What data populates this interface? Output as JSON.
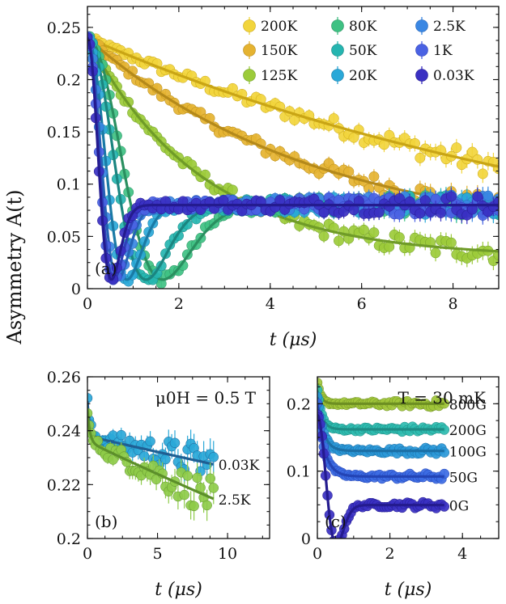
{
  "figure": {
    "y_axis_label": "Asymmetry A(t)"
  },
  "chart_data": [
    {
      "id": "a",
      "type": "scatter",
      "panel_tag": "(a)",
      "xlabel": "t (μs)",
      "xlim": [
        0,
        9
      ],
      "ylim": [
        0,
        0.27
      ],
      "x_ticks": [
        0,
        2,
        4,
        6,
        8
      ],
      "y_ticks": [
        0,
        0.05,
        0.1,
        0.15,
        0.2,
        0.25
      ],
      "x_tick_labels": [
        "0",
        "2",
        "4",
        "6",
        "8"
      ],
      "y_tick_labels": [
        "0",
        "0.05",
        "0.1",
        "0.15",
        "0.2",
        "0.25"
      ],
      "legend_position": "top-right",
      "series": [
        {
          "name": "200K",
          "color": "#f2d53c",
          "fit_color": "#c9a515",
          "model": "exp",
          "a0": 0.24,
          "base": 0.0,
          "rate": 0.08,
          "t_end": 9
        },
        {
          "name": "150K",
          "color": "#e5b331",
          "fit_color": "#b4891a",
          "model": "exp",
          "a0": 0.24,
          "base": 0.045,
          "rate": 0.2,
          "t_end": 9
        },
        {
          "name": "125K",
          "color": "#9ccb3a",
          "fit_color": "#6f9b28",
          "model": "exp",
          "a0": 0.24,
          "base": 0.03,
          "rate": 0.4,
          "t_end": 9
        },
        {
          "name": "80K",
          "color": "#3fc183",
          "fit_color": "#2a8f60",
          "model": "kt",
          "a0": 0.24,
          "base": 0.0,
          "delta": 1.05,
          "t_end": 9
        },
        {
          "name": "50K",
          "color": "#25b5b0",
          "fit_color": "#1b8580",
          "model": "kt",
          "a0": 0.24,
          "base": 0.0,
          "delta": 1.35,
          "t_end": 9
        },
        {
          "name": "20K",
          "color": "#2aa8d8",
          "fit_color": "#1a7aa5",
          "model": "kt",
          "a0": 0.24,
          "base": 0.0,
          "delta": 2.0,
          "t_end": 9
        },
        {
          "name": "2.5K",
          "color": "#3a87e3",
          "fit_color": "#2563b5",
          "model": "kt",
          "a0": 0.24,
          "base": 0.0,
          "delta": 2.6,
          "t_end": 9
        },
        {
          "name": "1K",
          "color": "#4a62e3",
          "fit_color": "#2f40b8",
          "model": "kt",
          "a0": 0.24,
          "base": 0.0,
          "delta": 3.0,
          "t_end": 9
        },
        {
          "name": "0.03K",
          "color": "#3a30c2",
          "fit_color": "#241b8f",
          "model": "kt",
          "a0": 0.24,
          "base": 0.0,
          "delta": 3.3,
          "t_end": 9
        }
      ]
    },
    {
      "id": "b",
      "type": "scatter",
      "panel_tag": "(b)",
      "annotation": "μ0H = 0.5 T",
      "xlabel": "t (μs)",
      "xlim": [
        0,
        13
      ],
      "ylim": [
        0.2,
        0.26
      ],
      "x_ticks": [
        0,
        5,
        10
      ],
      "y_ticks": [
        0.2,
        0.22,
        0.24,
        0.26
      ],
      "x_tick_labels": [
        "0",
        "5",
        "10"
      ],
      "y_tick_labels": [
        "0.2",
        "0.22",
        "0.24",
        "0.26"
      ],
      "series": [
        {
          "name": "0.03K",
          "color": "#2aa8d8",
          "fit_color": "#1f5f93",
          "label_color": "#1f5f93",
          "model": "fast",
          "a_fast": 0.013,
          "r_fast": 6,
          "a_slow": 0.238,
          "r_slow": 0.005,
          "t_end": 9
        },
        {
          "name": "2.5K",
          "color": "#8ecb49",
          "fit_color": "#5c8f2a",
          "label_color": "#6aa033",
          "model": "fast",
          "a_fast": 0.012,
          "r_fast": 6,
          "a_slow": 0.236,
          "r_slow": 0.0105,
          "t_end": 9
        }
      ]
    },
    {
      "id": "c",
      "type": "scatter",
      "panel_tag": "(c)",
      "annotation": "T = 30 mK",
      "xlabel": "t (μs)",
      "xlim": [
        0,
        5
      ],
      "ylim": [
        0,
        0.24
      ],
      "x_ticks": [
        0,
        2,
        4
      ],
      "y_ticks": [
        0,
        0.1,
        0.2
      ],
      "x_tick_labels": [
        "0",
        "2",
        "4"
      ],
      "y_tick_labels": [
        "0",
        "0.1",
        "0.2"
      ],
      "series": [
        {
          "name": "800G",
          "color": "#a0c43a",
          "fit_color": "#6d8f22",
          "label_color": "#7e9e1f",
          "model": "lf",
          "a0": 0.23,
          "plateau": 0.2,
          "rate": 10,
          "t_end": 3.5
        },
        {
          "name": "200G",
          "color": "#2fbcb0",
          "fit_color": "#1e8d85",
          "label_color": "#1e9a8f",
          "model": "lf",
          "a0": 0.22,
          "plateau": 0.162,
          "rate": 8,
          "t_end": 3.5
        },
        {
          "name": "100G",
          "color": "#2a98d8",
          "fit_color": "#1b6fa6",
          "label_color": "#1f72b2",
          "model": "lf",
          "a0": 0.21,
          "plateau": 0.13,
          "rate": 6,
          "t_end": 3.5
        },
        {
          "name": "50G",
          "color": "#3c6be3",
          "fit_color": "#2344b5",
          "label_color": "#2d4fc4",
          "model": "lf",
          "a0": 0.2,
          "plateau": 0.092,
          "rate": 5,
          "t_end": 3.5
        },
        {
          "name": "0G",
          "color": "#3a30c2",
          "fit_color": "#241b8f",
          "label_color": "#2e268f",
          "model": "kt",
          "a0": 0.2,
          "base": -0.017,
          "delta": 3.3,
          "t_end": 3.5
        }
      ]
    }
  ]
}
